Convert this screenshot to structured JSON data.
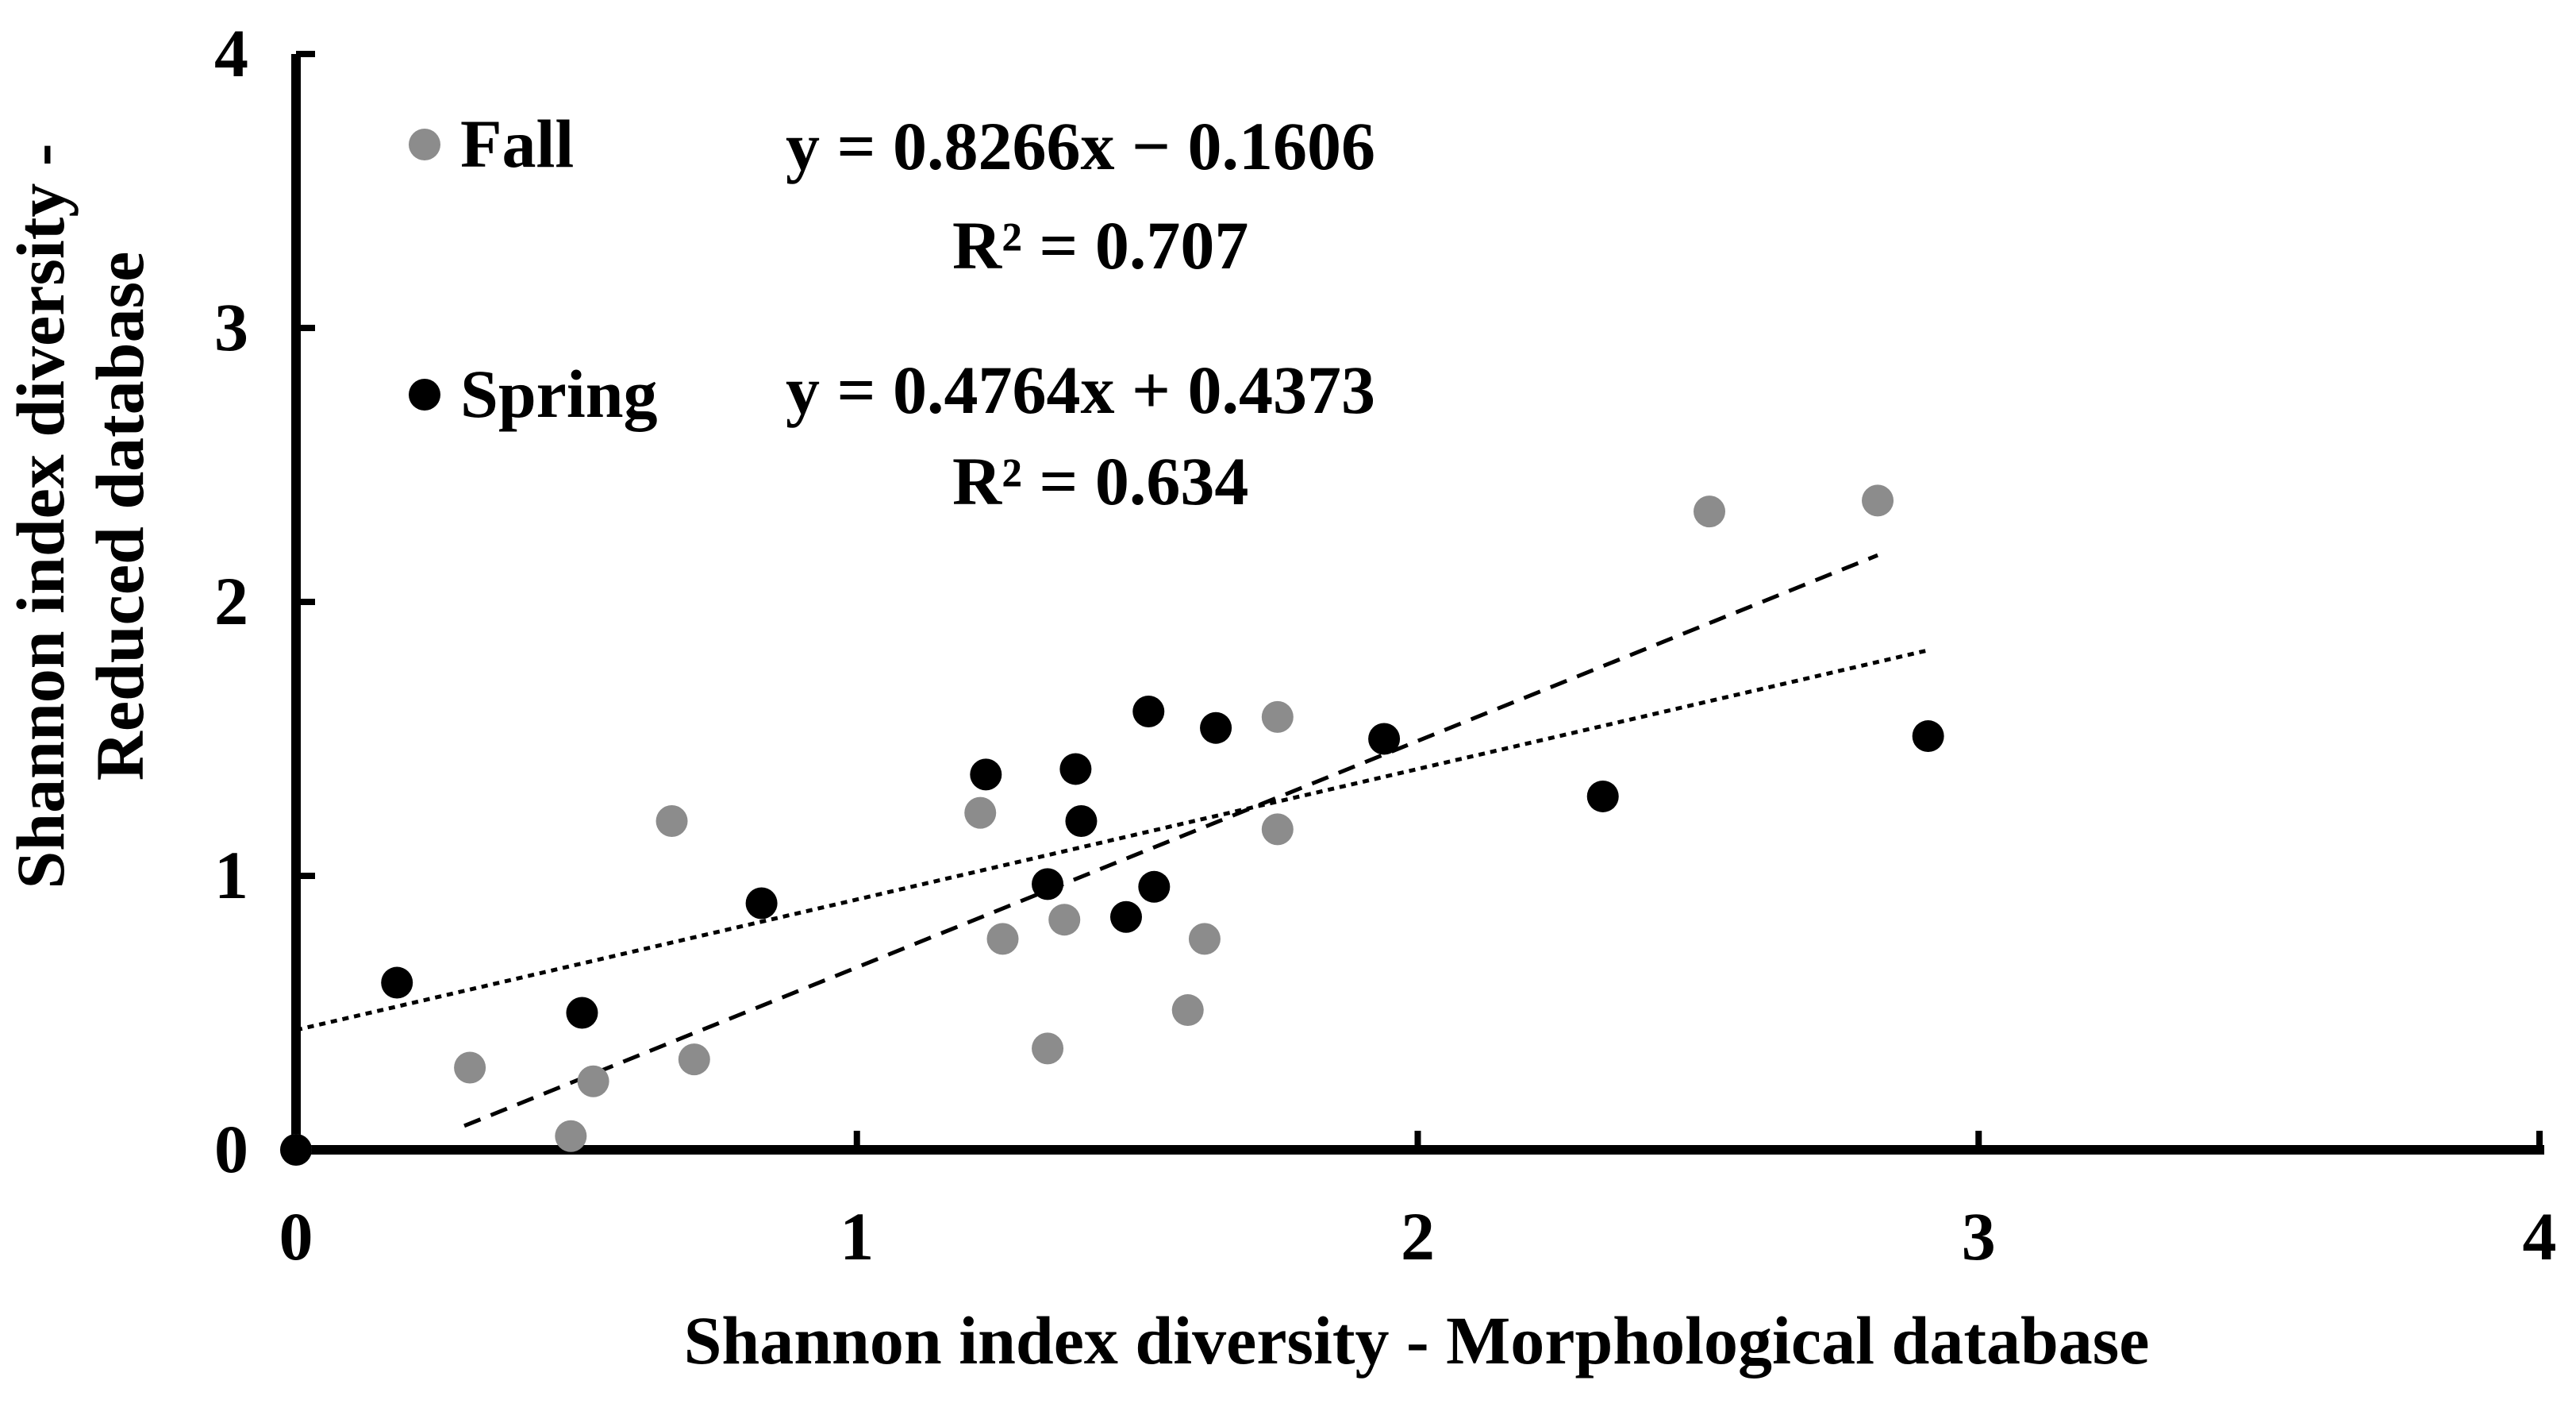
{
  "chart_data": {
    "type": "scatter",
    "xlabel": "Shannon index diversity - Morphological database",
    "ylabel_line1": "Shannon index diversity -",
    "ylabel_line2": "Reduced database",
    "xlim": [
      0,
      4
    ],
    "ylim": [
      0,
      4
    ],
    "xticks": [
      "0",
      "1",
      "2",
      "3",
      "4"
    ],
    "yticks": [
      "0",
      "1",
      "2",
      "3",
      "4"
    ],
    "grid": false,
    "legend_position": "top-left",
    "series": [
      {
        "name": "Fall",
        "color": "#8c8c8c",
        "points": [
          [
            0.0,
            0.0
          ],
          [
            0.31,
            0.3
          ],
          [
            0.49,
            0.05
          ],
          [
            0.53,
            0.25
          ],
          [
            0.67,
            1.2
          ],
          [
            0.71,
            0.33
          ],
          [
            1.22,
            1.23
          ],
          [
            1.26,
            0.77
          ],
          [
            1.34,
            0.37
          ],
          [
            1.37,
            0.84
          ],
          [
            1.59,
            0.51
          ],
          [
            1.62,
            0.77
          ],
          [
            1.75,
            1.58
          ],
          [
            1.75,
            1.17
          ],
          [
            2.52,
            2.33
          ],
          [
            2.82,
            2.37
          ]
        ],
        "trendline": {
          "equation": "y = 0.8266x − 0.1606",
          "r2": "R² = 0.707",
          "slope": 0.8266,
          "intercept": -0.1606,
          "x_range": [
            0.3,
            2.82
          ],
          "style": "dashed"
        }
      },
      {
        "name": "Spring",
        "color": "#000000",
        "points": [
          [
            0.0,
            0.0
          ],
          [
            0.18,
            0.61
          ],
          [
            0.51,
            0.5
          ],
          [
            0.83,
            0.9
          ],
          [
            1.23,
            1.37
          ],
          [
            1.34,
            0.97
          ],
          [
            1.39,
            1.39
          ],
          [
            1.4,
            1.2
          ],
          [
            1.48,
            0.85
          ],
          [
            1.52,
            1.6
          ],
          [
            1.53,
            0.96
          ],
          [
            1.64,
            1.54
          ],
          [
            1.94,
            1.5
          ],
          [
            2.33,
            1.29
          ],
          [
            2.91,
            1.51
          ]
        ],
        "trendline": {
          "equation": "y = 0.4764x + 0.4373",
          "r2": "R² = 0.634",
          "slope": 0.4764,
          "intercept": 0.4373,
          "x_range": [
            0.0,
            2.91
          ],
          "style": "dotted"
        }
      }
    ]
  }
}
